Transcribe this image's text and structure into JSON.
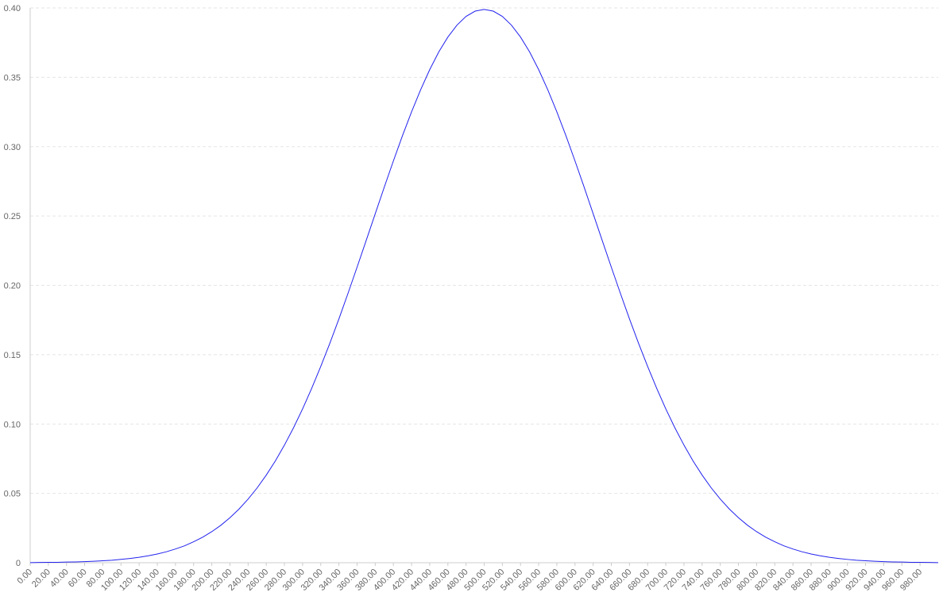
{
  "chart_data": {
    "type": "line",
    "x": [
      0,
      10,
      20,
      30,
      40,
      50,
      60,
      70,
      80,
      90,
      100,
      110,
      120,
      130,
      140,
      150,
      160,
      170,
      180,
      190,
      200,
      210,
      220,
      230,
      240,
      250,
      260,
      270,
      280,
      290,
      300,
      310,
      320,
      330,
      340,
      350,
      360,
      370,
      380,
      390,
      400,
      410,
      420,
      430,
      440,
      450,
      460,
      470,
      480,
      490,
      500,
      510,
      520,
      530,
      540,
      550,
      560,
      570,
      580,
      590,
      600,
      610,
      620,
      630,
      640,
      650,
      660,
      670,
      680,
      690,
      700,
      710,
      720,
      730,
      740,
      750,
      760,
      770,
      780,
      790,
      800,
      810,
      820,
      830,
      840,
      850,
      860,
      870,
      880,
      890,
      900,
      910,
      920,
      930,
      940,
      950,
      960,
      970,
      980,
      990,
      1000
    ],
    "series": [
      {
        "color": "#2222ee",
        "values": [
          0.0001,
          0.0002,
          0.0003,
          0.0003,
          0.0005,
          0.0006,
          0.0008,
          0.0011,
          0.0014,
          0.0018,
          0.0024,
          0.0031,
          0.0039,
          0.005,
          0.0063,
          0.0079,
          0.0099,
          0.0122,
          0.0151,
          0.0184,
          0.0224,
          0.027,
          0.0325,
          0.0387,
          0.0459,
          0.054,
          0.0632,
          0.0734,
          0.0848,
          0.0973,
          0.1109,
          0.1257,
          0.1415,
          0.1582,
          0.1758,
          0.1942,
          0.2131,
          0.2323,
          0.2516,
          0.2709,
          0.2897,
          0.3079,
          0.3251,
          0.341,
          0.3555,
          0.3683,
          0.379,
          0.3876,
          0.3939,
          0.3977,
          0.3989,
          0.3977,
          0.3939,
          0.3876,
          0.379,
          0.3683,
          0.3555,
          0.341,
          0.3251,
          0.3079,
          0.2897,
          0.2709,
          0.2516,
          0.2323,
          0.2131,
          0.1942,
          0.1758,
          0.1582,
          0.1415,
          0.1257,
          0.1109,
          0.0973,
          0.0848,
          0.0734,
          0.0632,
          0.054,
          0.0459,
          0.0387,
          0.0325,
          0.027,
          0.0224,
          0.0184,
          0.0151,
          0.0122,
          0.0099,
          0.0079,
          0.0063,
          0.005,
          0.0039,
          0.0031,
          0.0024,
          0.0018,
          0.0014,
          0.0011,
          0.0008,
          0.0006,
          0.0005,
          0.0003,
          0.0003,
          0.0002,
          0.0001
        ]
      }
    ],
    "xlim": [
      0,
      1000
    ],
    "xticks": [
      {
        "value": 0,
        "label": "0.00"
      },
      {
        "value": 20,
        "label": "20.00"
      },
      {
        "value": 40,
        "label": "40.00"
      },
      {
        "value": 60,
        "label": "60.00"
      },
      {
        "value": 80,
        "label": "80.00"
      },
      {
        "value": 100,
        "label": "100.00"
      },
      {
        "value": 120,
        "label": "120.00"
      },
      {
        "value": 140,
        "label": "140.00"
      },
      {
        "value": 160,
        "label": "160.00"
      },
      {
        "value": 180,
        "label": "180.00"
      },
      {
        "value": 200,
        "label": "200.00"
      },
      {
        "value": 220,
        "label": "220.00"
      },
      {
        "value": 240,
        "label": "240.00"
      },
      {
        "value": 260,
        "label": "260.00"
      },
      {
        "value": 280,
        "label": "280.00"
      },
      {
        "value": 300,
        "label": "300.00"
      },
      {
        "value": 320,
        "label": "320.00"
      },
      {
        "value": 340,
        "label": "340.00"
      },
      {
        "value": 360,
        "label": "360.00"
      },
      {
        "value": 380,
        "label": "380.00"
      },
      {
        "value": 400,
        "label": "400.00"
      },
      {
        "value": 420,
        "label": "420.00"
      },
      {
        "value": 440,
        "label": "440.00"
      },
      {
        "value": 460,
        "label": "460.00"
      },
      {
        "value": 480,
        "label": "480.00"
      },
      {
        "value": 500,
        "label": "500.00"
      },
      {
        "value": 520,
        "label": "520.00"
      },
      {
        "value": 540,
        "label": "540.00"
      },
      {
        "value": 560,
        "label": "560.00"
      },
      {
        "value": 580,
        "label": "580.00"
      },
      {
        "value": 600,
        "label": "600.00"
      },
      {
        "value": 620,
        "label": "620.00"
      },
      {
        "value": 640,
        "label": "640.00"
      },
      {
        "value": 660,
        "label": "660.00"
      },
      {
        "value": 680,
        "label": "680.00"
      },
      {
        "value": 700,
        "label": "700.00"
      },
      {
        "value": 720,
        "label": "720.00"
      },
      {
        "value": 740,
        "label": "740.00"
      },
      {
        "value": 760,
        "label": "760.00"
      },
      {
        "value": 780,
        "label": "780.00"
      },
      {
        "value": 800,
        "label": "800.00"
      },
      {
        "value": 820,
        "label": "820.00"
      },
      {
        "value": 840,
        "label": "840.00"
      },
      {
        "value": 860,
        "label": "860.00"
      },
      {
        "value": 880,
        "label": "880.00"
      },
      {
        "value": 900,
        "label": "900.00"
      },
      {
        "value": 920,
        "label": "920.00"
      },
      {
        "value": 940,
        "label": "940.00"
      },
      {
        "value": 960,
        "label": "960.00"
      },
      {
        "value": 980,
        "label": "980.00"
      }
    ],
    "ylim": [
      0,
      0.4
    ],
    "yticks": [
      0,
      0.05,
      {
        "value": 0.1,
        "label": "0.10"
      },
      0.15,
      {
        "value": 0.2,
        "label": "0.20"
      },
      0.25,
      {
        "value": 0.3,
        "label": "0.30"
      },
      0.35,
      {
        "value": 0.4,
        "label": "0.40"
      }
    ],
    "grid": true
  }
}
